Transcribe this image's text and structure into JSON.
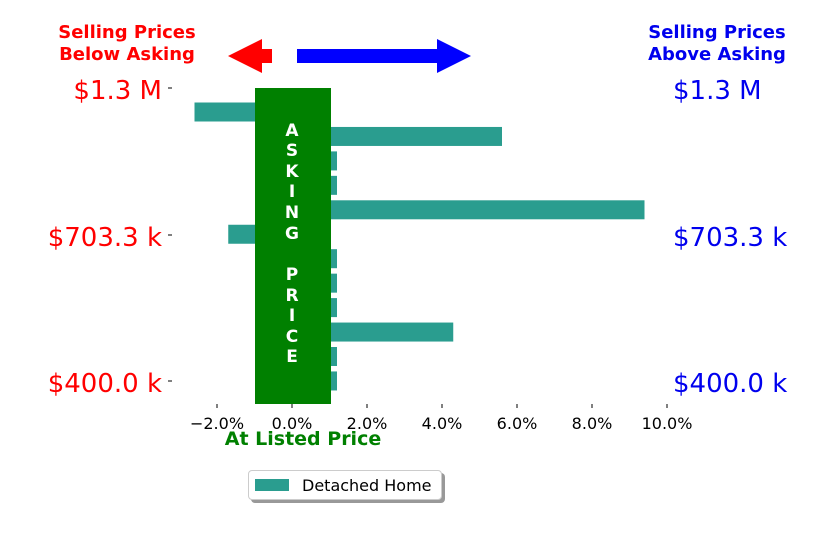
{
  "header": {
    "left_title_line1": "Selling Prices",
    "left_title_line2": "Below Asking",
    "right_title_line1": "Selling Prices",
    "right_title_line2": "Above Asking"
  },
  "price_labels": {
    "left": [
      "$1.3 M",
      "$703.3 k",
      "$400.0 k"
    ],
    "right": [
      "$1.3 M",
      "$703.3 k",
      "$400.0 k"
    ]
  },
  "asking_band": {
    "letters": [
      "A",
      "S",
      "K",
      "I",
      "N",
      "G",
      "P",
      "R",
      "I",
      "C",
      "E"
    ],
    "caption": "At Listed Price",
    "color": "#008000"
  },
  "colors": {
    "below": "#ff0000",
    "above": "#0000ee",
    "bar": "#2a9d8f"
  },
  "chart_data": {
    "type": "bar",
    "orientation": "horizontal",
    "series": [
      {
        "name": "Detached Home",
        "values": [
          -2.6,
          5.6,
          1.2,
          1.2,
          9.4,
          -1.7,
          1.2,
          1.2,
          1.2,
          4.3,
          1.2,
          1.2
        ]
      }
    ],
    "x_ticks": [
      "−2.0%",
      "0.0%",
      "2.0%",
      "4.0%",
      "6.0%",
      "8.0%",
      "10.0%"
    ],
    "xlim": [
      -3.3,
      10.6
    ],
    "legend": "bottom-center",
    "grid": false
  },
  "legend": {
    "label": "Detached Home"
  }
}
